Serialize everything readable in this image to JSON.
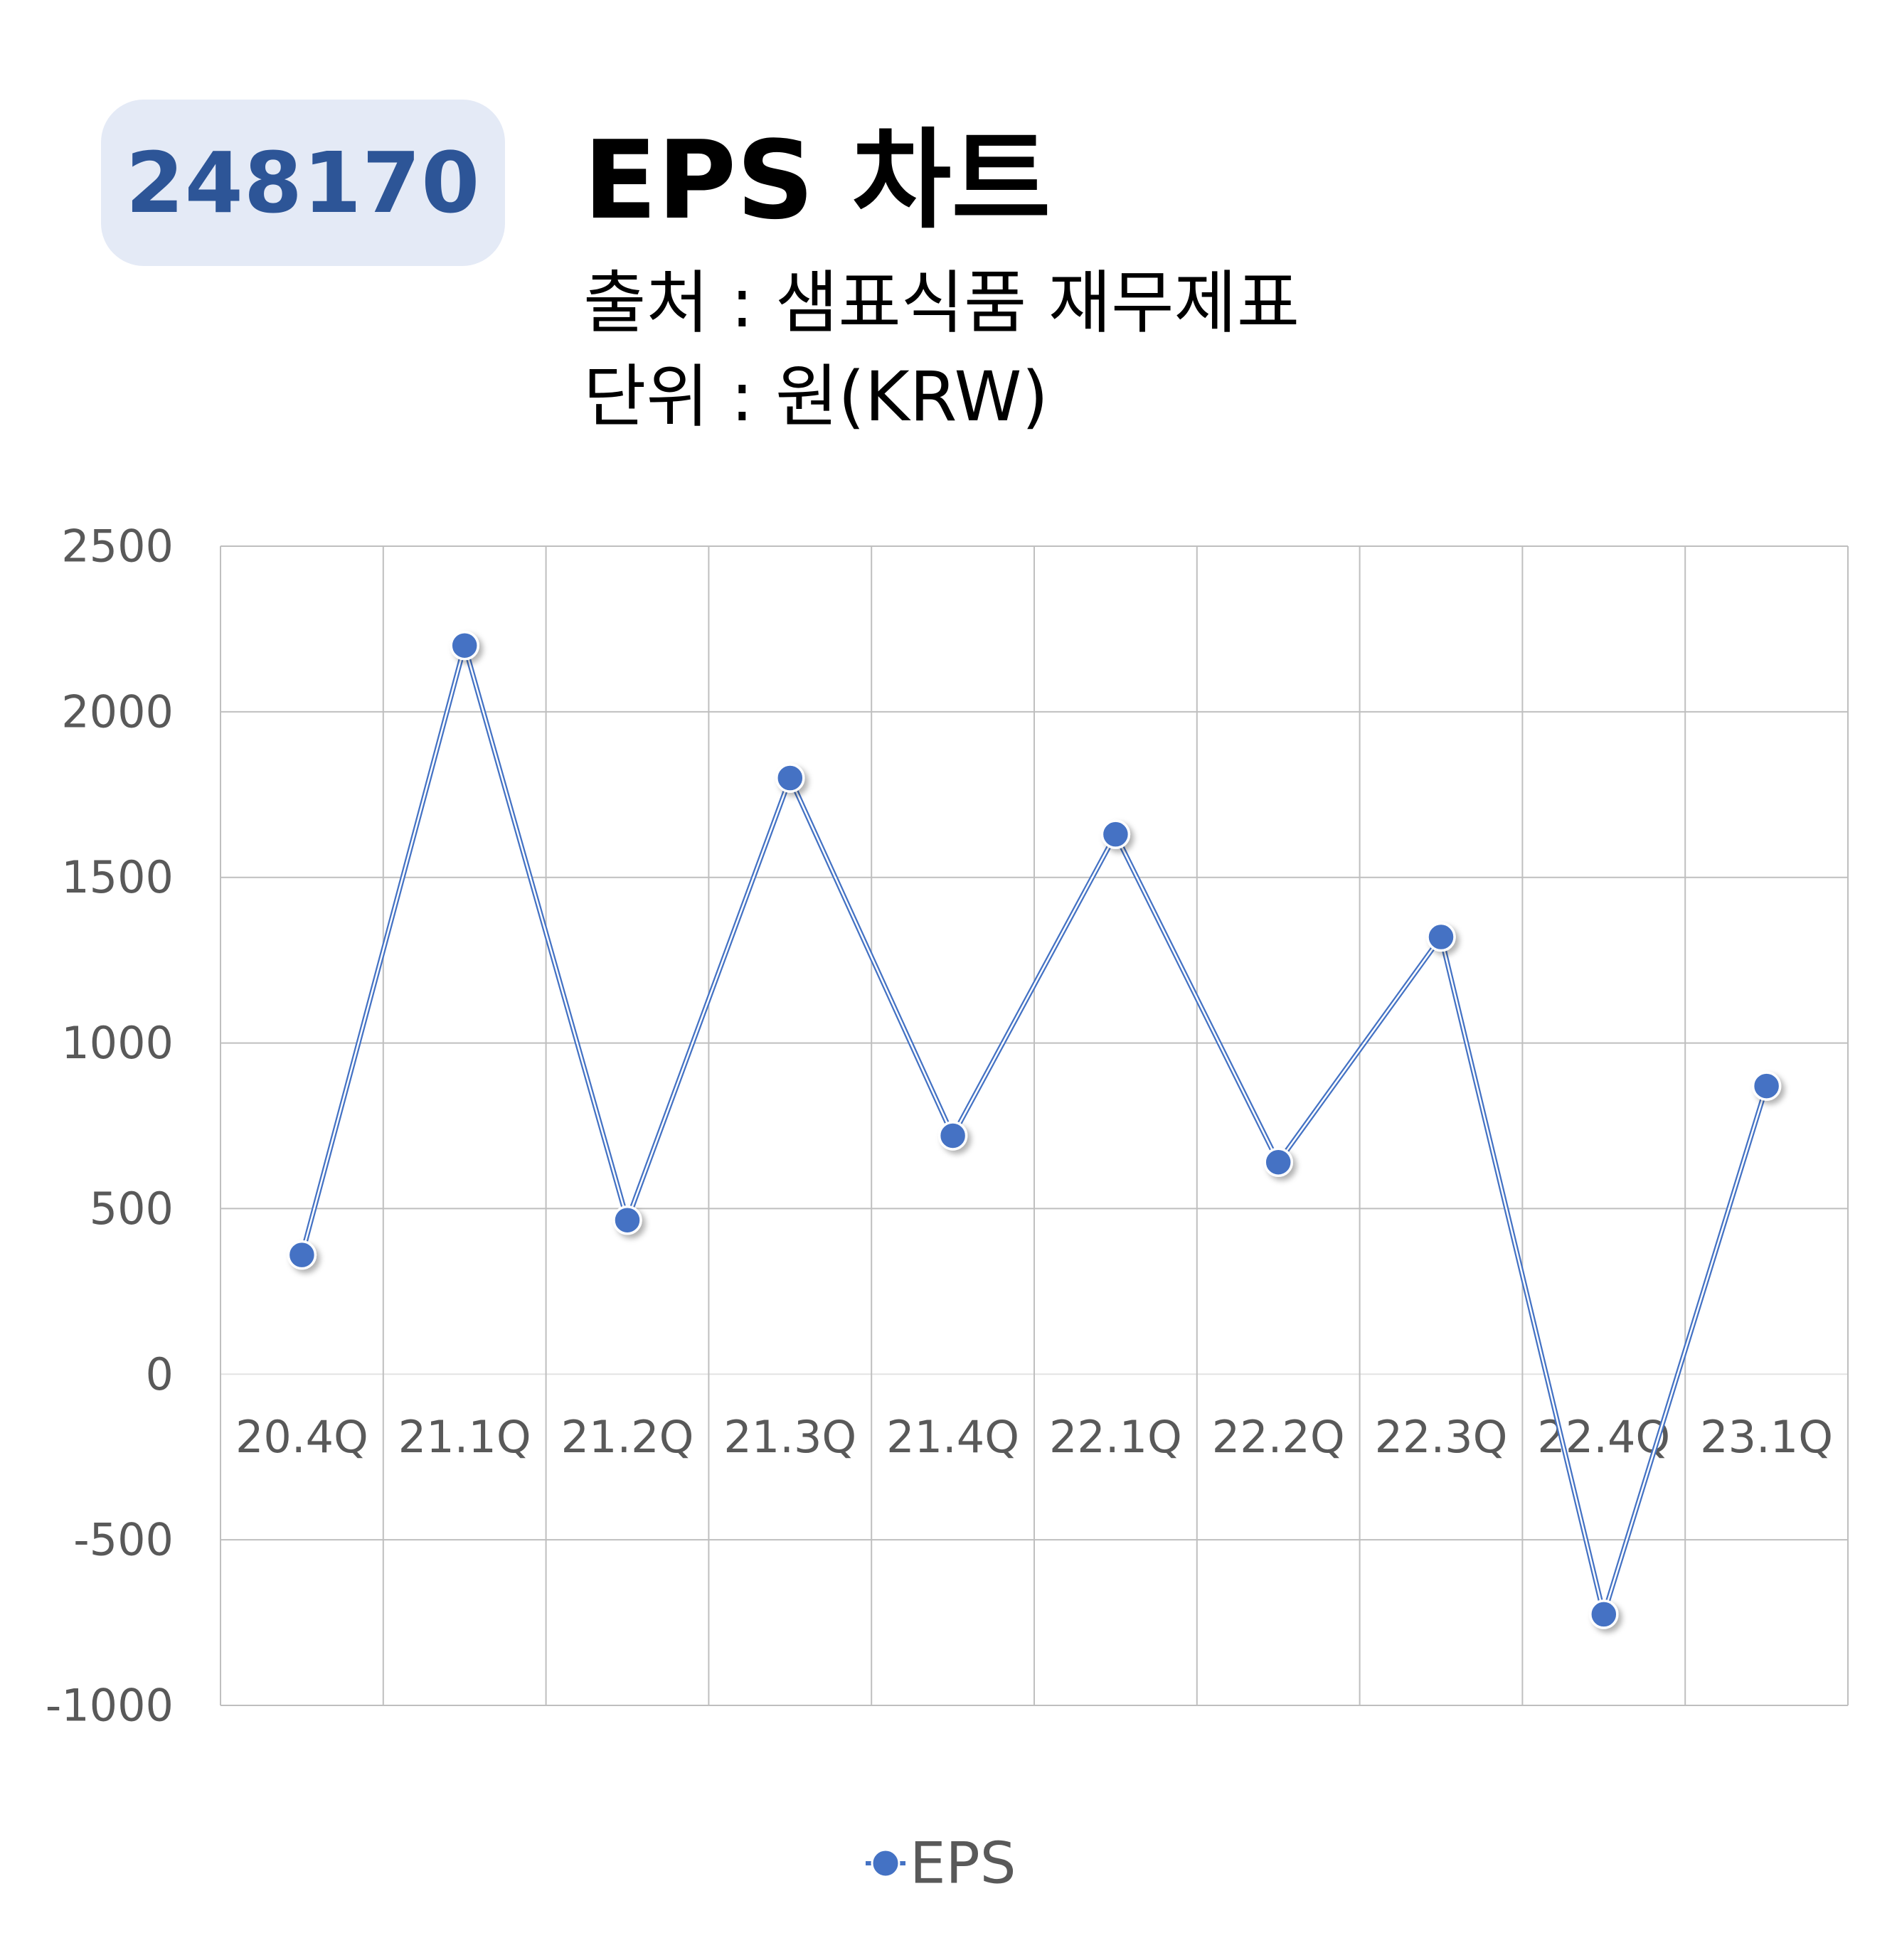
{
  "header": {
    "code": "248170",
    "title": "EPS 차트",
    "source_line": "출처 : 샘표식품 재무제표",
    "unit_line": "단위 : 원(KRW)"
  },
  "colors": {
    "series": "#4472c4",
    "grid": "#bfbfbf",
    "tick_text": "#595959",
    "badge_bg": "#e4eaf6",
    "badge_text": "#2d5597"
  },
  "chart_data": {
    "type": "line",
    "categories": [
      "20.4Q",
      "21.1Q",
      "21.2Q",
      "21.3Q",
      "21.4Q",
      "22.1Q",
      "22.2Q",
      "22.3Q",
      "22.4Q",
      "23.1Q"
    ],
    "series": [
      {
        "name": "EPS",
        "values": [
          360,
          2200,
          465,
          1800,
          720,
          1630,
          640,
          1320,
          -725,
          870
        ]
      }
    ],
    "ylim": [
      -1000,
      2500
    ],
    "yticks": [
      2500,
      2000,
      1500,
      1000,
      500,
      0,
      -500,
      -1000
    ],
    "grid": true,
    "legend": "bottom"
  }
}
